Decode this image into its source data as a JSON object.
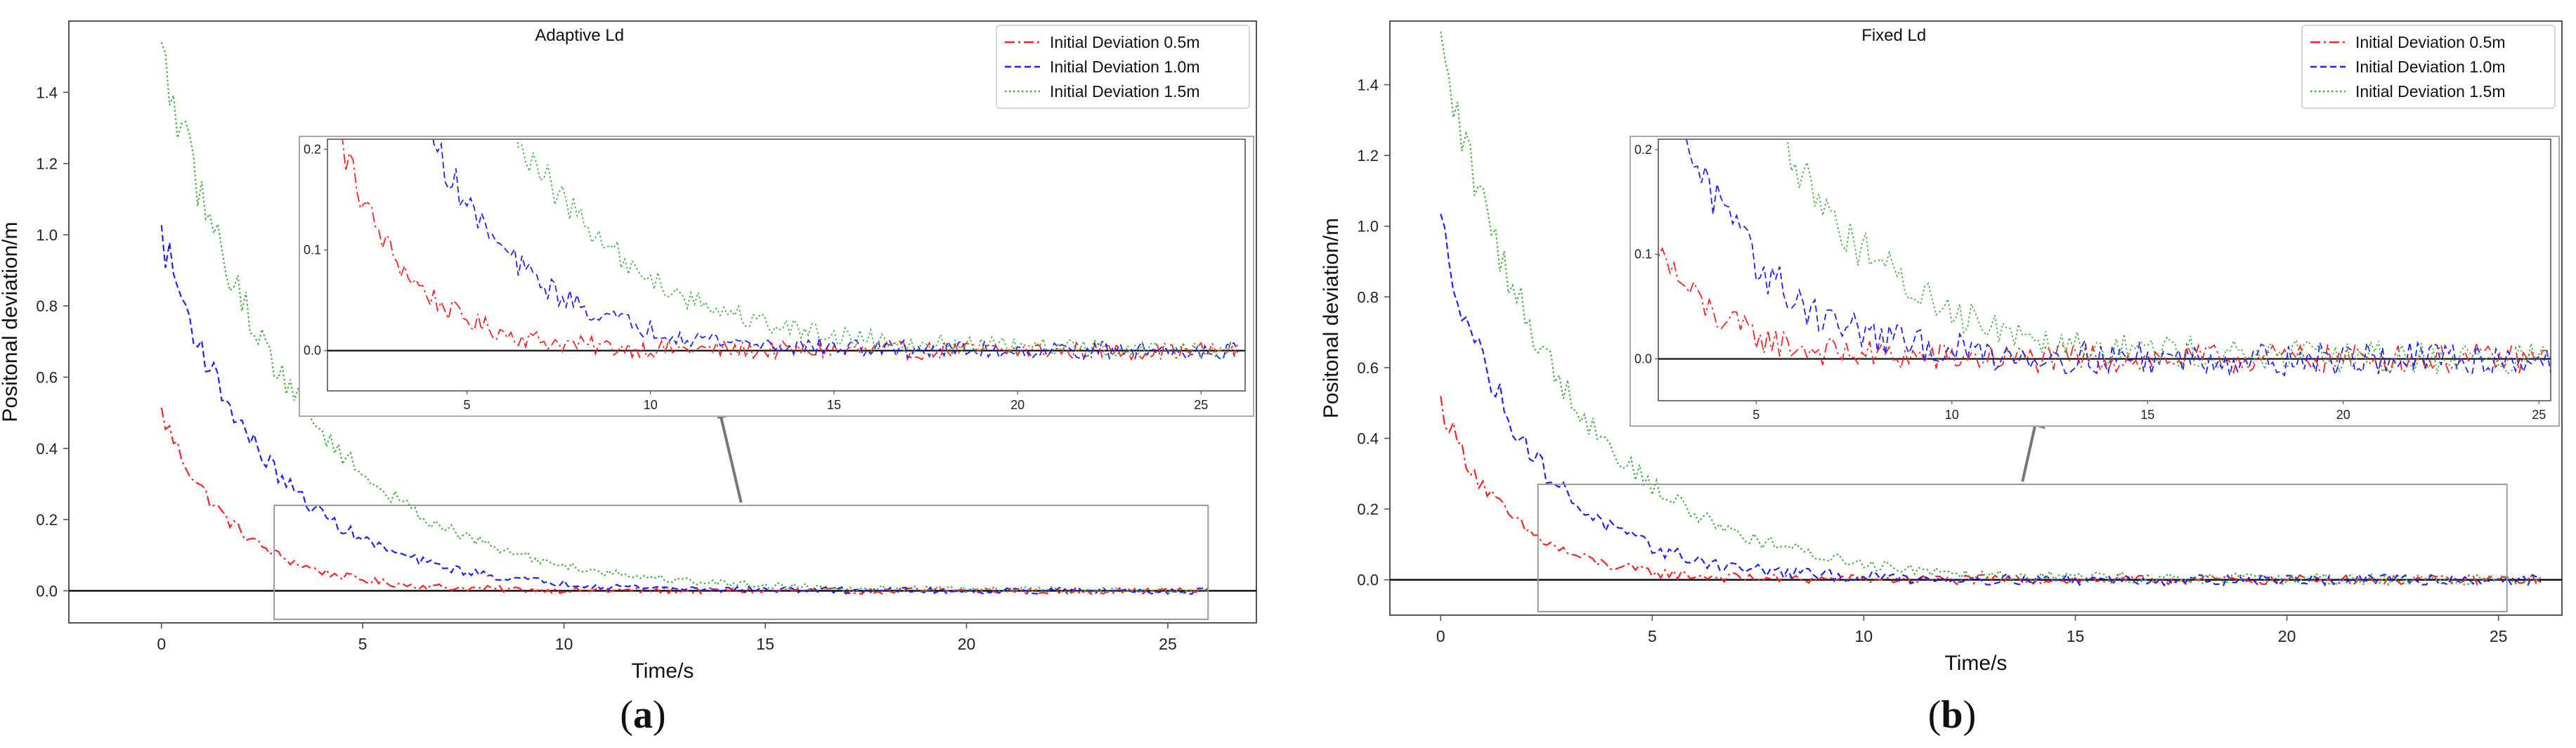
{
  "chart_data": [
    {
      "type": "line",
      "title": "Adaptive Ld",
      "panel_letter": "a",
      "xlabel": "Time/s",
      "ylabel": "Positonal deviation/m",
      "xlim": [
        -2.3,
        27.2
      ],
      "ylim": [
        -0.09,
        1.6
      ],
      "xticks": [
        0,
        5,
        10,
        15,
        20,
        25
      ],
      "yticks": [
        0.0,
        0.2,
        0.4,
        0.6,
        0.8,
        1.0,
        1.2,
        1.4
      ],
      "legend_position": "top-right",
      "series": [
        {
          "name": "Initial Deviation 0.5m",
          "color": "#ff2020",
          "dash": "dashdot",
          "initial": 0.5,
          "tau": 1.8,
          "noise": 0.009
        },
        {
          "name": "Initial Deviation 1.0m",
          "color": "#2020ff",
          "dash": "dashed",
          "initial": 1.0,
          "tau": 2.6,
          "noise": 0.009
        },
        {
          "name": "Initial Deviation 1.5m",
          "color": "#40b040",
          "dash": "dotted",
          "initial": 1.5,
          "tau": 3.3,
          "noise": 0.009
        }
      ],
      "inset": {
        "xlim": [
          1.2,
          26.2
        ],
        "ylim": [
          -0.04,
          0.21
        ],
        "xticks": [
          5,
          10,
          15,
          20,
          25
        ],
        "yticks": [
          0.0,
          0.1,
          0.2
        ],
        "zoom_xrange": [
          2.8,
          26.0
        ],
        "zoom_yrange": [
          -0.08,
          0.24
        ]
      }
    },
    {
      "type": "line",
      "title": "Fixed Ld",
      "panel_letter": "b",
      "xlabel": "Time/s",
      "ylabel": "Positonal deviation/m",
      "xlim": [
        -1.2,
        26.5
      ],
      "ylim": [
        -0.1,
        1.58
      ],
      "xticks": [
        0,
        5,
        10,
        15,
        20,
        25
      ],
      "yticks": [
        0.0,
        0.2,
        0.4,
        0.6,
        0.8,
        1.0,
        1.2,
        1.4
      ],
      "legend_position": "top-right",
      "series": [
        {
          "name": "Initial Deviation 0.5m",
          "color": "#ff2020",
          "dash": "dashdot",
          "initial": 0.5,
          "tau": 1.6,
          "noise": 0.014
        },
        {
          "name": "Initial Deviation 1.0m",
          "color": "#2020ff",
          "dash": "dashed",
          "initial": 1.0,
          "tau": 2.1,
          "noise": 0.016
        },
        {
          "name": "Initial Deviation 1.5m",
          "color": "#40b040",
          "dash": "dotted",
          "initial": 1.5,
          "tau": 2.9,
          "noise": 0.016
        }
      ],
      "inset": {
        "xlim": [
          2.5,
          25.3
        ],
        "ylim": [
          -0.04,
          0.21
        ],
        "xticks": [
          5,
          10,
          15,
          20,
          25
        ],
        "yticks": [
          0.0,
          0.1,
          0.2
        ],
        "zoom_xrange": [
          2.3,
          25.2
        ],
        "zoom_yrange": [
          -0.09,
          0.27
        ]
      }
    }
  ]
}
